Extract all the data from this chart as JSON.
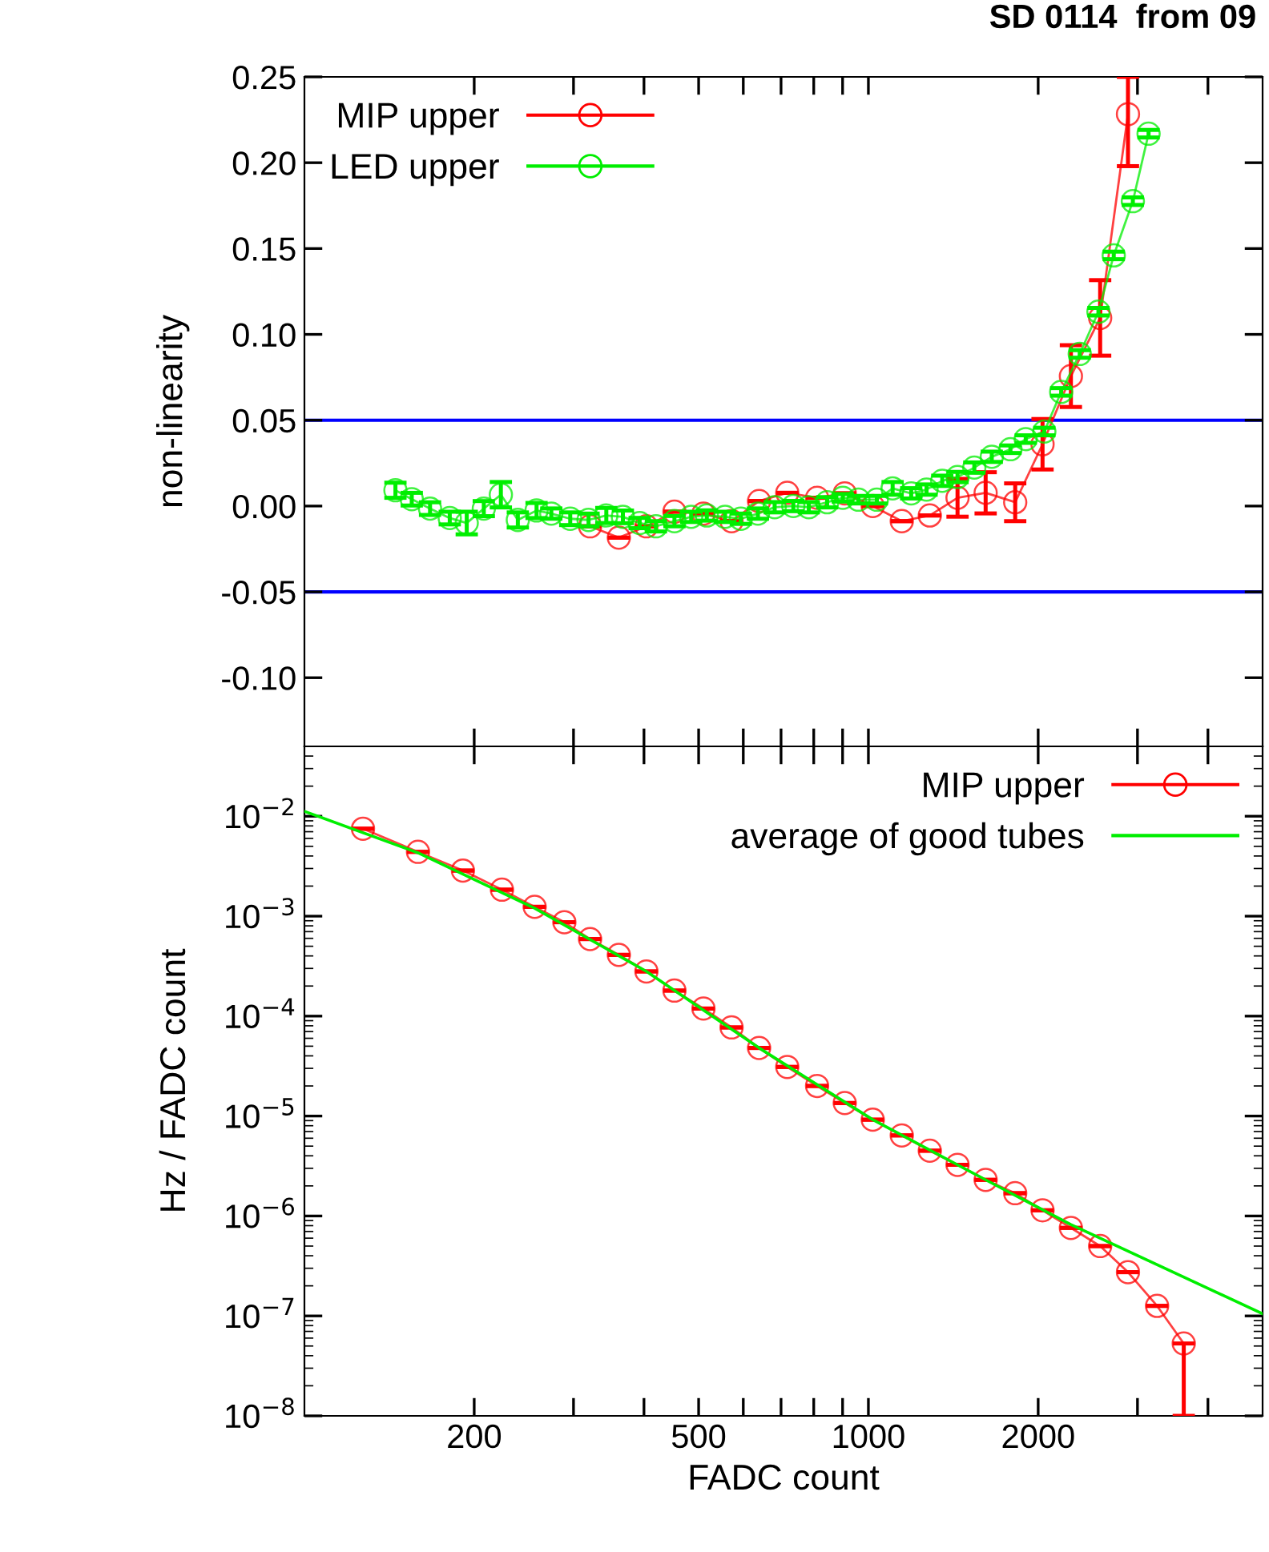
{
  "chart_data": [
    {
      "type": "line",
      "title": "SD 0114  from 09",
      "ylabel": "non-linearity",
      "log": "x",
      "xlim": [
        100,
        5000
      ],
      "xticks": [
        {
          "value": 200,
          "label": null
        },
        {
          "value": 300,
          "label": null
        },
        {
          "value": 400,
          "label": null
        },
        {
          "value": 500,
          "label": null
        },
        {
          "value": 600,
          "label": null
        },
        {
          "value": 700,
          "label": null
        },
        {
          "value": 800,
          "label": null
        },
        {
          "value": 900,
          "label": null
        },
        {
          "value": 1000,
          "label": null
        },
        {
          "value": 2000,
          "label": null
        },
        {
          "value": 3000,
          "label": null
        },
        {
          "value": 4000,
          "label": null
        }
      ],
      "ylim": [
        -0.14,
        0.25
      ],
      "yticks": [
        {
          "value": -0.1,
          "label": "-0.10"
        },
        {
          "value": -0.05,
          "label": "-0.05"
        },
        {
          "value": 0,
          "label": "0.00"
        },
        {
          "value": 0.05,
          "label": "0.05"
        },
        {
          "value": 0.1,
          "label": "0.10"
        },
        {
          "value": 0.15,
          "label": "0.15"
        },
        {
          "value": 0.2,
          "label": "0.20"
        },
        {
          "value": 0.25,
          "label": "0.25"
        }
      ],
      "tick_labels": "y",
      "grid": false,
      "legend": "top left",
      "marker": "circle",
      "ref_lines": [
        {
          "axis": "y",
          "value": 0.05,
          "color": "#0000ff"
        },
        {
          "axis": "y",
          "value": -0.05,
          "color": "#0000ff"
        }
      ],
      "series": [
        {
          "name": "MIP upper",
          "color": "#ff0000",
          "x": [
            321,
            361,
            404,
            453,
            510,
            572,
            640,
            718,
            811,
            908,
            1018,
            1146,
            1285,
            1439,
            1614,
            1821,
            2036,
            2286,
            2576,
            2886
          ],
          "values": [
            -0.0118,
            -0.0184,
            -0.0118,
            -0.0033,
            -0.0044,
            -0.0088,
            0.0029,
            0.0077,
            0.0048,
            0.0074,
            0.0,
            -0.0088,
            -0.0055,
            0.0048,
            0.0077,
            0.0022,
            0.036,
            0.0757,
            0.1096,
            0.2283
          ],
          "errors": [
            null,
            null,
            null,
            null,
            null,
            null,
            null,
            null,
            null,
            null,
            null,
            null,
            null,
            0.011,
            0.012,
            0.011,
            0.0147,
            0.018,
            0.022,
            [
              0.198,
              0.25
            ]
          ]
        },
        {
          "name": "LED upper",
          "color": "#00ee00",
          "x": [
            145,
            155,
            167,
            181,
            194,
            208,
            223,
            239,
            258,
            274,
            296,
            319,
            343,
            367,
            393,
            420,
            453,
            485,
            517,
            557,
            594,
            637,
            682,
            736,
            784,
            845,
            901,
            960,
            1035,
            1104,
            1191,
            1268,
            1352,
            1439,
            1541,
            1655,
            1786,
            1901,
            2051,
            2197,
            2370,
            2558,
            2723,
            2944,
            3139
          ],
          "values": [
            0.0092,
            0.004,
            -0.0015,
            -0.007,
            -0.0099,
            -0.0015,
            0.0066,
            -0.0081,
            -0.0026,
            -0.0044,
            -0.0074,
            -0.0081,
            -0.0055,
            -0.0063,
            -0.0099,
            -0.0118,
            -0.0088,
            -0.0063,
            -0.0055,
            -0.0063,
            -0.0074,
            -0.0044,
            -0.0007,
            0.0,
            -0.0007,
            0.0022,
            0.0048,
            0.0037,
            0.0037,
            0.0103,
            0.0074,
            0.0096,
            0.0147,
            0.0169,
            0.0224,
            0.0287,
            0.0331,
            0.039,
            0.0434,
            0.0665,
            0.0886,
            0.1132,
            0.146,
            0.1776,
            0.2169
          ],
          "errors": [
            0.0044,
            0.0037,
            0.0037,
            0.0037,
            0.0066,
            0.0044,
            0.0074,
            0.0044,
            0.0044,
            0.003,
            0.0037,
            0.0037,
            0.0044,
            0.0037,
            0.003,
            0.003,
            0.003,
            0.003,
            0.003,
            0.003,
            0.003,
            0.003,
            0.003,
            0.003,
            0.003,
            0.003,
            0.0022,
            0.0022,
            0.0022,
            0.0037,
            0.003,
            0.003,
            0.003,
            0.003,
            0.003,
            0.003,
            0.0022,
            0.0022,
            0.0022,
            0.0022,
            0.0022,
            0.0022,
            0.0022,
            0.0022,
            0.0022
          ]
        }
      ]
    },
    {
      "type": "line",
      "xlabel": "FADC count",
      "ylabel": "Hz / FADC count",
      "log": "xy",
      "xlim": [
        100,
        5000
      ],
      "xticks": [
        {
          "value": 200,
          "label": "200"
        },
        {
          "value": 300,
          "label": null
        },
        {
          "value": 400,
          "label": null
        },
        {
          "value": 500,
          "label": "500"
        },
        {
          "value": 600,
          "label": null
        },
        {
          "value": 700,
          "label": null
        },
        {
          "value": 800,
          "label": null
        },
        {
          "value": 900,
          "label": null
        },
        {
          "value": 1000,
          "label": "1000"
        },
        {
          "value": 2000,
          "label": "2000"
        },
        {
          "value": 3000,
          "label": null
        },
        {
          "value": 4000,
          "label": null
        }
      ],
      "ylim": [
        1e-08,
        0.05
      ],
      "yticks": [
        {
          "value": 1e-08,
          "label": "10$^{−8}$"
        },
        {
          "value": 1e-07,
          "label": "10$^{−7}$"
        },
        {
          "value": 1e-06,
          "label": "10$^{−6}$"
        },
        {
          "value": 1e-05,
          "label": "10$^{−5}$"
        },
        {
          "value": 0.0001,
          "label": "10$^{−4}$"
        },
        {
          "value": 0.001,
          "label": "10$^{−3}$"
        },
        {
          "value": 0.01,
          "label": "10$^{−2}$"
        }
      ],
      "grid": false,
      "legend": "top right",
      "marker": "circle",
      "series": [
        {
          "name": "MIP upper",
          "color": "#ff0000",
          "x": [
            127,
            159,
            191,
            224,
            256,
            289,
            321,
            361,
            404,
            453,
            510,
            572,
            640,
            718,
            811,
            908,
            1018,
            1146,
            1285,
            1439,
            1614,
            1821,
            2036,
            2286,
            2576,
            2886,
            3250,
            3624
          ],
          "values": [
            0.0075,
            0.0044,
            0.00286,
            0.00184,
            0.00124,
            0.00087,
            0.00059,
            0.00041,
            0.00028,
            0.00018,
            0.000119,
            7.7e-05,
            4.8e-05,
            3.1e-05,
            2e-05,
            1.35e-05,
            9.2e-06,
            6.4e-06,
            4.5e-06,
            3.25e-06,
            2.3e-06,
            1.69e-06,
            1.14e-06,
            7.6e-07,
            5e-07,
            2.74e-07,
            1.26e-07,
            5.3e-08
          ],
          "errors": [
            null,
            null,
            null,
            null,
            null,
            null,
            null,
            null,
            null,
            null,
            null,
            null,
            null,
            null,
            null,
            null,
            null,
            null,
            null,
            null,
            null,
            null,
            null,
            null,
            null,
            null,
            null,
            [
              1e-08,
              5.3e-08
            ]
          ]
        },
        {
          "name": "average of good tubes",
          "color": "#00ee00",
          "marker": "none",
          "x": [
            100,
            159,
            256,
            404,
            640,
            1018,
            1614,
            2286,
            5000
          ],
          "values": [
            0.0112,
            0.0043,
            0.0012,
            0.00028,
            4.8e-05,
            9.2e-06,
            2.3e-06,
            8.2e-07,
            1.05e-07
          ]
        }
      ]
    }
  ]
}
